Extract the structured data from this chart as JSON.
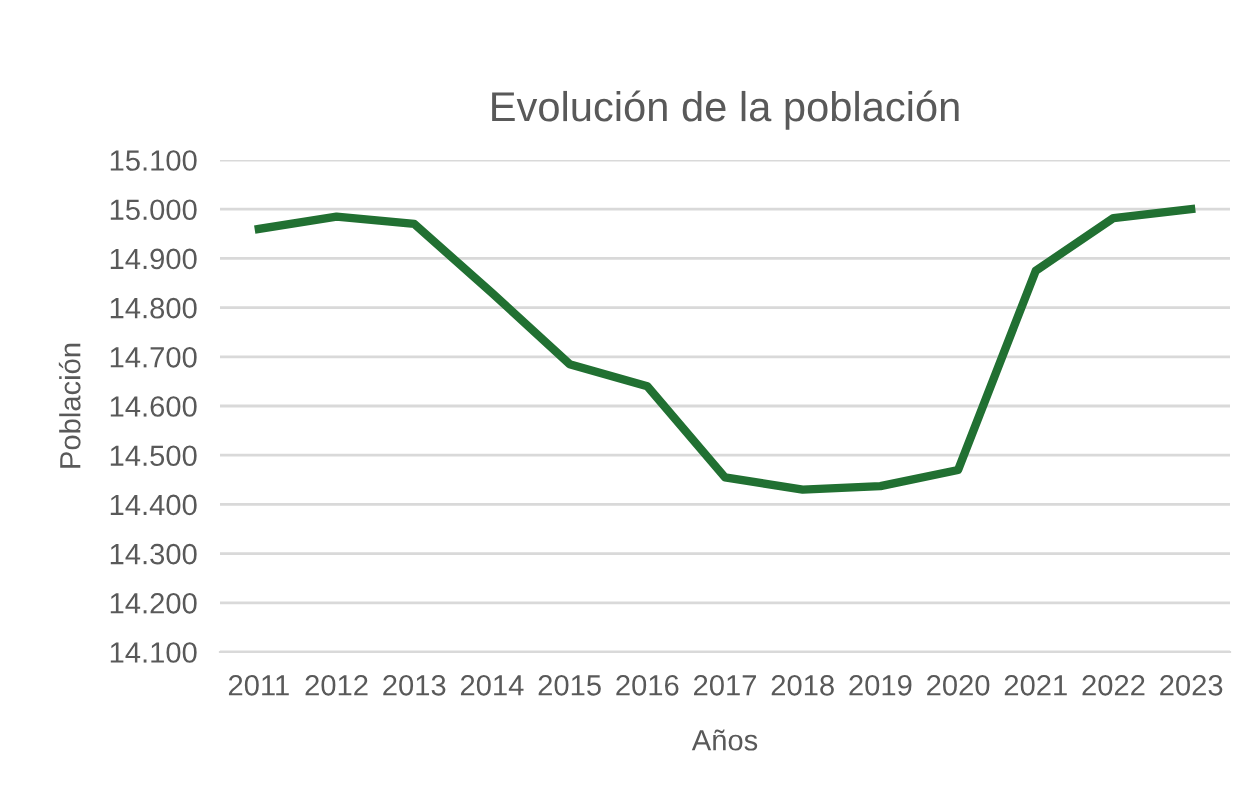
{
  "chart_data": {
    "type": "line",
    "title": "Evolución de la población",
    "xlabel": "Años",
    "ylabel": "Población",
    "categories": [
      "2011",
      "2012",
      "2013",
      "2014",
      "2015",
      "2016",
      "2017",
      "2018",
      "2019",
      "2020",
      "2021",
      "2022",
      "2023"
    ],
    "series": [
      {
        "color": "#217032",
        "values": [
          14960,
          14985,
          14970,
          14830,
          14685,
          14640,
          14455,
          14430,
          14437,
          14470,
          14875,
          14982,
          15000
        ]
      }
    ],
    "ylim": [
      14100,
      15100
    ],
    "yticks": [
      {
        "value": 14100,
        "label": "14.100"
      },
      {
        "value": 14200,
        "label": "14.200"
      },
      {
        "value": 14300,
        "label": "14.300"
      },
      {
        "value": 14400,
        "label": "14.400"
      },
      {
        "value": 14500,
        "label": "14.500"
      },
      {
        "value": 14600,
        "label": "14.600"
      },
      {
        "value": 14700,
        "label": "14.700"
      },
      {
        "value": 14800,
        "label": "14.800"
      },
      {
        "value": 14900,
        "label": "14.900"
      },
      {
        "value": 15000,
        "label": "15.000"
      },
      {
        "value": 15100,
        "label": "15.100"
      }
    ],
    "grid": "y",
    "marker": "none",
    "line_style": "solid"
  }
}
